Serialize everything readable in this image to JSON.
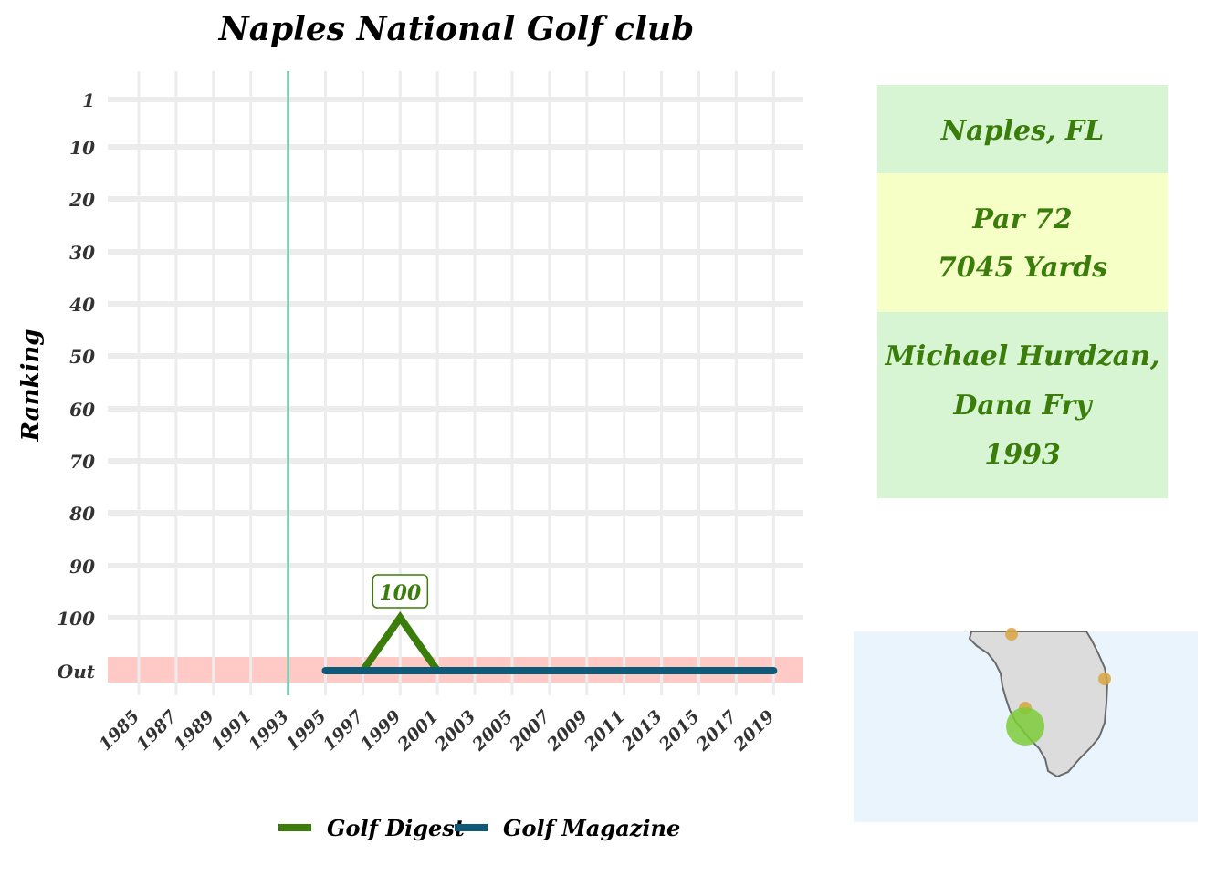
{
  "chart_data": {
    "type": "line",
    "title": "Naples National Golf club",
    "xlabel": "",
    "ylabel": "Ranking",
    "x_ticks": [
      "1985",
      "1987",
      "1989",
      "1991",
      "1993",
      "1995",
      "1997",
      "1999",
      "2001",
      "2003",
      "2005",
      "2007",
      "2009",
      "2011",
      "2013",
      "2015",
      "2017",
      "2019"
    ],
    "y_ticks": [
      "1",
      "10",
      "20",
      "30",
      "40",
      "50",
      "60",
      "70",
      "80",
      "90",
      "100",
      "Out"
    ],
    "xlim": [
      1983,
      2021
    ],
    "grid": true,
    "opened_year": 1993,
    "out_band_color": "#ffc9c5",
    "series": [
      {
        "name": "Golf Digest",
        "color": "#3a7d0a",
        "x": [
          1997,
          1999,
          2001
        ],
        "y": [
          "Out",
          100,
          "Out"
        ]
      },
      {
        "name": "Golf Magazine",
        "color": "#0f5a78",
        "x": [
          1995,
          2019
        ],
        "y": [
          "Out",
          "Out"
        ]
      }
    ],
    "annotations": [
      {
        "x": 1999,
        "y": 100,
        "text": "100",
        "series": "Golf Digest"
      }
    ],
    "legend_position": "bottom"
  },
  "info": {
    "location": "Naples, FL",
    "par": "Par 72",
    "yards": "7045 Yards",
    "architect_line1": "Michael Hurdzan,",
    "architect_line2": "Dana Fry",
    "year": "1993",
    "colors": {
      "location_bg": "#d7f5d2",
      "course_bg": "#f5ffc6",
      "architect_bg": "#d7f5d2",
      "text": "#3a7d0a"
    }
  },
  "map": {
    "region": "South Florida",
    "water_color": "#eaf4fc",
    "land_color": "#dcdcdc",
    "highlight_color": "#7ccb3a",
    "other_course_color": "#d9a441"
  }
}
